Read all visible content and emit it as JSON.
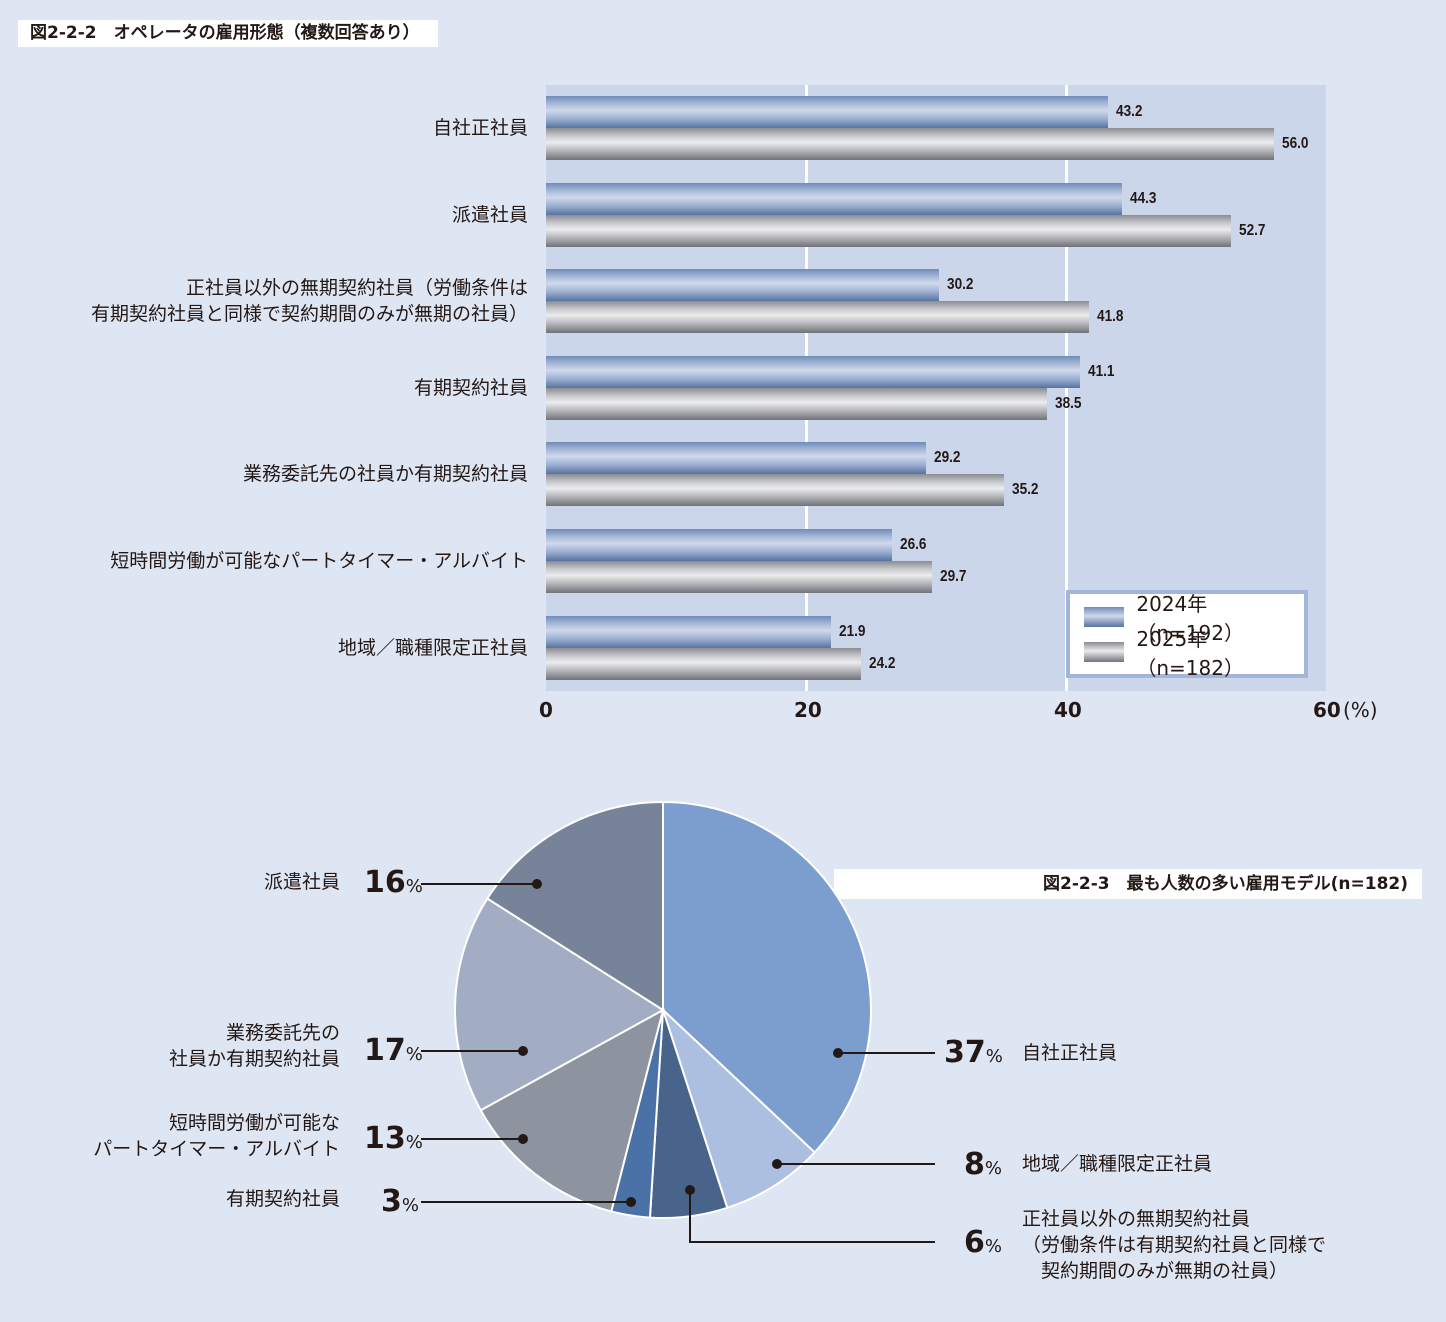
{
  "figure1": {
    "title": "図2-2-2　オペレータの雇用形態（複数回答あり）",
    "axis_unit": "(%)",
    "ticks": [
      "0",
      "20",
      "40",
      "60"
    ],
    "legend": [
      {
        "label": "2024年（n=192）",
        "color": "#6f8cba"
      },
      {
        "label": "2025年（n=182）",
        "color": "#a9aaae"
      }
    ],
    "categories": [
      {
        "label_lines": [
          "自社正社員"
        ],
        "v2024": "43.2",
        "v2025": "56.0"
      },
      {
        "label_lines": [
          "派遣社員"
        ],
        "v2024": "44.3",
        "v2025": "52.7"
      },
      {
        "label_lines": [
          "正社員以外の無期契約社員（労働条件は",
          "有期契約社員と同様で契約期間のみが無期の社員）"
        ],
        "v2024": "30.2",
        "v2025": "41.8"
      },
      {
        "label_lines": [
          "有期契約社員"
        ],
        "v2024": "41.1",
        "v2025": "38.5"
      },
      {
        "label_lines": [
          "業務委託先の社員か有期契約社員"
        ],
        "v2024": "29.2",
        "v2025": "35.2"
      },
      {
        "label_lines": [
          "短時間労働が可能なパートタイマー・アルバイト"
        ],
        "v2024": "26.6",
        "v2025": "29.7"
      },
      {
        "label_lines": [
          "地域／職種限定正社員"
        ],
        "v2024": "21.9",
        "v2025": "24.2"
      }
    ]
  },
  "figure2": {
    "title": "図2-2-3　最も人数の多い雇用モデル(n=182)",
    "slices": [
      {
        "label_lines": [
          "自社正社員"
        ],
        "pct": "37",
        "color": "#7b9ecf"
      },
      {
        "label_lines": [
          "地域／職種限定正社員"
        ],
        "pct": "8",
        "color": "#adbfe0"
      },
      {
        "label_lines": [
          "正社員以外の無期契約社員",
          "（労働条件は有期契約社員と同様で",
          "　契約期間のみが無期の社員）"
        ],
        "pct": "6",
        "color": "#48648b"
      },
      {
        "label_lines": [
          "有期契約社員"
        ],
        "pct": "3",
        "color": "#4a72a6"
      },
      {
        "label_lines": [
          "短時間労働が可能な",
          "パートタイマー・アルバイト"
        ],
        "pct": "13",
        "color": "#8d949f"
      },
      {
        "label_lines": [
          "業務委託先の",
          "社員か有期契約社員"
        ],
        "pct": "17",
        "color": "#a2adc3"
      },
      {
        "label_lines": [
          "派遣社員"
        ],
        "pct": "16",
        "color": "#778399"
      }
    ],
    "pct_symbol": "%"
  },
  "chart_data": [
    {
      "type": "bar",
      "orientation": "horizontal",
      "title": "図2-2-2　オペレータの雇用形態（複数回答あり）",
      "categories": [
        "自社正社員",
        "派遣社員",
        "正社員以外の無期契約社員（労働条件は有期契約社員と同様で契約期間のみが無期の社員）",
        "有期契約社員",
        "業務委託先の社員か有期契約社員",
        "短時間労働が可能なパートタイマー・アルバイト",
        "地域／職種限定正社員"
      ],
      "series": [
        {
          "name": "2024年（n=192）",
          "values": [
            43.2,
            44.3,
            30.2,
            41.1,
            29.2,
            26.6,
            21.9
          ]
        },
        {
          "name": "2025年（n=182）",
          "values": [
            56.0,
            52.7,
            41.8,
            38.5,
            35.2,
            29.7,
            24.2
          ]
        }
      ],
      "xlabel": "(%)",
      "ylabel": "",
      "xlim": [
        0,
        60
      ],
      "xticks": [
        0,
        20,
        40,
        60
      ],
      "grid": true,
      "legend_position": "lower right inside"
    },
    {
      "type": "pie",
      "title": "図2-2-3　最も人数の多い雇用モデル(n=182)",
      "categories": [
        "自社正社員",
        "地域／職種限定正社員",
        "正社員以外の無期契約社員（労働条件は有期契約社員と同様で契約期間のみが無期の社員）",
        "有期契約社員",
        "短時間労働が可能なパートタイマー・アルバイト",
        "業務委託先の社員か有期契約社員",
        "派遣社員"
      ],
      "values": [
        37,
        8,
        6,
        3,
        13,
        17,
        16
      ],
      "unit": "%"
    }
  ]
}
